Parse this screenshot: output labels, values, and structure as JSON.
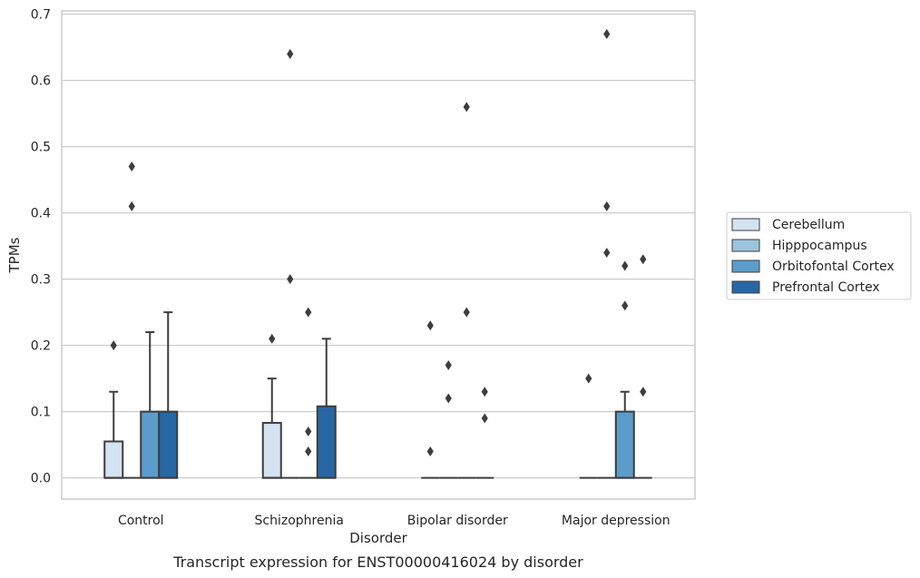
{
  "chart_data": {
    "type": "box",
    "title": "",
    "caption": "Transcript expression for ENST00000416024 by disorder",
    "xlabel": "Disorder",
    "ylabel": "TPMs",
    "ylim": [
      -0.032,
      0.705
    ],
    "yticks": [
      0.0,
      0.1,
      0.2,
      0.3,
      0.4,
      0.5,
      0.6,
      0.7
    ],
    "ytick_labels": [
      "0.0",
      "0.1",
      "0.2",
      "0.3",
      "0.4",
      "0.5",
      "0.6",
      "0.7"
    ],
    "grid": "horizontal",
    "legend_position": "right",
    "categories": [
      "Control",
      "Schizophrenia",
      "Bipolar disorder",
      "Major depression"
    ],
    "series": [
      {
        "name": "Cerebellum",
        "color": "#d4e3f1",
        "boxes": [
          {
            "q1": 0.0,
            "median": 0.0,
            "q3": 0.055,
            "whisker_low": 0.0,
            "whisker_high": 0.13,
            "outliers": [
              0.2
            ]
          },
          {
            "q1": 0.0,
            "median": 0.0,
            "q3": 0.083,
            "whisker_low": 0.0,
            "whisker_high": 0.15,
            "outliers": [
              0.21
            ]
          },
          {
            "q1": 0.0,
            "median": 0.0,
            "q3": 0.0,
            "whisker_low": 0.0,
            "whisker_high": 0.0,
            "outliers": [
              0.23,
              0.04
            ]
          },
          {
            "q1": 0.0,
            "median": 0.0,
            "q3": 0.0,
            "whisker_low": 0.0,
            "whisker_high": 0.0,
            "outliers": [
              0.15
            ]
          }
        ]
      },
      {
        "name": "Hipppocampus",
        "color": "#9dc4dd",
        "boxes": [
          {
            "q1": 0.0,
            "median": 0.0,
            "q3": 0.0,
            "whisker_low": 0.0,
            "whisker_high": 0.0,
            "outliers": [
              0.47,
              0.41
            ]
          },
          {
            "q1": 0.0,
            "median": 0.0,
            "q3": 0.0,
            "whisker_low": 0.0,
            "whisker_high": 0.0,
            "outliers": [
              0.64,
              0.3
            ]
          },
          {
            "q1": 0.0,
            "median": 0.0,
            "q3": 0.0,
            "whisker_low": 0.0,
            "whisker_high": 0.0,
            "outliers": [
              0.17,
              0.12
            ]
          },
          {
            "q1": 0.0,
            "median": 0.0,
            "q3": 0.0,
            "whisker_low": 0.0,
            "whisker_high": 0.0,
            "outliers": [
              0.67,
              0.41,
              0.34
            ]
          }
        ]
      },
      {
        "name": "Orbitofontal Cortex",
        "color": "#5b9ccb",
        "boxes": [
          {
            "q1": 0.0,
            "median": 0.0,
            "q3": 0.1,
            "whisker_low": 0.0,
            "whisker_high": 0.22,
            "outliers": []
          },
          {
            "q1": 0.0,
            "median": 0.0,
            "q3": 0.0,
            "whisker_low": 0.0,
            "whisker_high": 0.0,
            "outliers": [
              0.25,
              0.07,
              0.04
            ]
          },
          {
            "q1": 0.0,
            "median": 0.0,
            "q3": 0.0,
            "whisker_low": 0.0,
            "whisker_high": 0.0,
            "outliers": [
              0.56,
              0.25
            ]
          },
          {
            "q1": 0.0,
            "median": 0.0,
            "q3": 0.1,
            "whisker_low": 0.0,
            "whisker_high": 0.13,
            "outliers": [
              0.32,
              0.26
            ]
          }
        ]
      },
      {
        "name": "Prefrontal Cortex",
        "color": "#2767a5",
        "boxes": [
          {
            "q1": 0.0,
            "median": 0.0,
            "q3": 0.1,
            "whisker_low": 0.0,
            "whisker_high": 0.25,
            "outliers": []
          },
          {
            "q1": 0.0,
            "median": 0.0,
            "q3": 0.108,
            "whisker_low": 0.0,
            "whisker_high": 0.21,
            "outliers": []
          },
          {
            "q1": 0.0,
            "median": 0.0,
            "q3": 0.0,
            "whisker_low": 0.0,
            "whisker_high": 0.0,
            "outliers": [
              0.13,
              0.09
            ]
          },
          {
            "q1": 0.0,
            "median": 0.0,
            "q3": 0.0,
            "whisker_low": 0.0,
            "whisker_high": 0.0,
            "outliers": [
              0.33,
              0.13
            ]
          }
        ]
      }
    ]
  }
}
